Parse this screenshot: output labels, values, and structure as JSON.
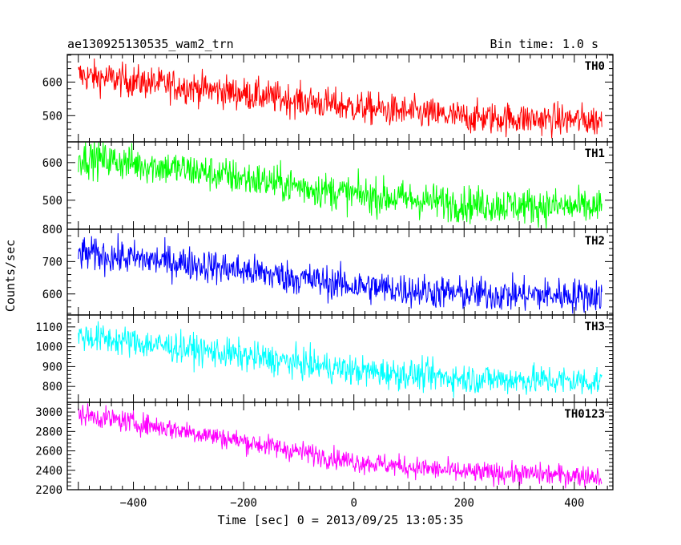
{
  "header": {
    "title": "ae130925130535_wam2_trn",
    "bin_time": "Bin time: 1.0 s"
  },
  "chart_data": {
    "type": "line",
    "xlabel": "Time [sec] 0 = 2013/09/25 13:05:35",
    "ylabel": "Counts/sec",
    "xlim": [
      -520,
      470
    ],
    "x_ticks": [
      -400,
      -200,
      0,
      200,
      400
    ],
    "x_tick_labels": [
      "−400",
      "−200",
      "0",
      "200",
      "400"
    ],
    "x_range": [
      -500,
      450
    ],
    "panels": [
      {
        "name": "TH0",
        "color": "#ff0000",
        "ylim": [
          422,
          682
        ],
        "y_ticks": [
          500,
          600
        ],
        "y_tick_labels": [
          "500",
          "600"
        ],
        "trend": [
          [
            -500,
            620
          ],
          [
            -300,
            585
          ],
          [
            0,
            525
          ],
          [
            200,
            495
          ],
          [
            450,
            485
          ]
        ],
        "noise": 24
      },
      {
        "name": "TH1",
        "color": "#00ff00",
        "ylim": [
          423,
          655
        ],
        "y_ticks": [
          500,
          600
        ],
        "y_tick_labels": [
          "500",
          "600"
        ],
        "trend": [
          [
            -500,
            615
          ],
          [
            -300,
            580
          ],
          [
            0,
            515
          ],
          [
            200,
            490
          ],
          [
            450,
            480
          ]
        ],
        "noise": 24
      },
      {
        "name": "TH2",
        "color": "#0000ff",
        "ylim": [
          535,
          800
        ],
        "y_ticks": [
          600,
          700,
          800
        ],
        "y_tick_labels": [
          "600",
          "700",
          "800"
        ],
        "trend": [
          [
            -500,
            725
          ],
          [
            -300,
            695
          ],
          [
            0,
            625
          ],
          [
            200,
            600
          ],
          [
            450,
            595
          ]
        ],
        "noise": 26
      },
      {
        "name": "TH3",
        "color": "#00ffff",
        "ylim": [
          720,
          1160
        ],
        "y_ticks": [
          800,
          900,
          1000,
          1100
        ],
        "y_tick_labels": [
          "800",
          "900",
          "1000",
          "1100"
        ],
        "trend": [
          [
            -500,
            1055
          ],
          [
            -300,
            990
          ],
          [
            0,
            880
          ],
          [
            200,
            840
          ],
          [
            450,
            825
          ]
        ],
        "noise": 38
      },
      {
        "name": "TH0123",
        "color": "#ff00ff",
        "ylim": [
          2200,
          3100
        ],
        "y_ticks": [
          2200,
          2400,
          2600,
          2800,
          3000
        ],
        "y_tick_labels": [
          "2200",
          "2400",
          "2600",
          "2800",
          "3000"
        ],
        "trend": [
          [
            -500,
            2980
          ],
          [
            -300,
            2800
          ],
          [
            0,
            2490
          ],
          [
            200,
            2380
          ],
          [
            450,
            2340
          ]
        ],
        "noise": 55
      }
    ]
  }
}
